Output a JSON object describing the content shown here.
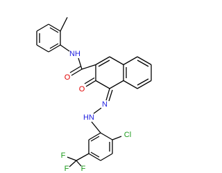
{
  "atoms": {
    "amide_n": "NH",
    "amide_o": "O",
    "keto_o": "O",
    "azo_n": "N",
    "hydrazo_n": "HN",
    "chlorine": "Cl",
    "fluorine_1": "F",
    "fluorine_2": "F",
    "fluorine_3": "F"
  }
}
